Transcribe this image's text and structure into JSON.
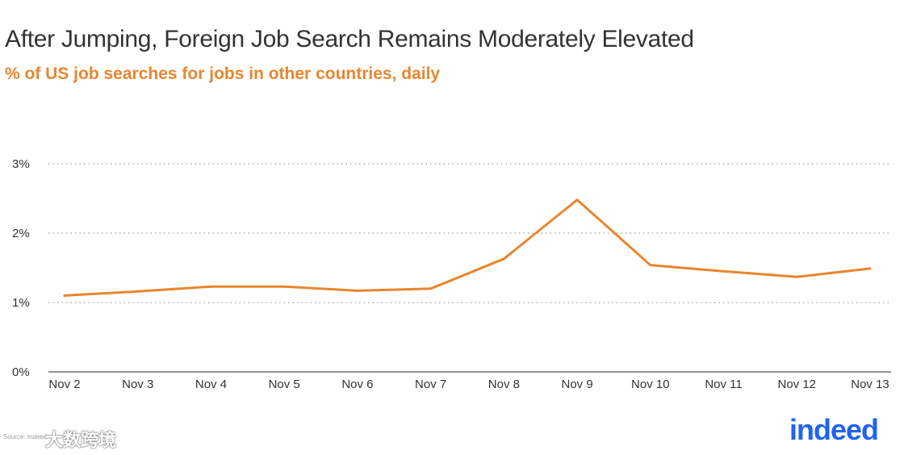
{
  "chart_data": {
    "type": "line",
    "title": "After Jumping, Foreign Job Search Remains Moderately Elevated",
    "subtitle": "% of US job searches for jobs in other countries, daily",
    "categories": [
      "Nov 2",
      "Nov 3",
      "Nov 4",
      "Nov 5",
      "Nov 6",
      "Nov 7",
      "Nov 8",
      "Nov 9",
      "Nov 10",
      "Nov 11",
      "Nov 12",
      "Nov 13"
    ],
    "series": [
      {
        "values": [
          1.1,
          1.16,
          1.23,
          1.23,
          1.17,
          1.2,
          1.63,
          2.48,
          1.54,
          1.45,
          1.37,
          1.49
        ]
      }
    ],
    "y_ticks": [
      0,
      1,
      2,
      3
    ],
    "y_tick_labels": [
      "0%",
      "1%",
      "2%",
      "3%"
    ],
    "ylim": [
      0,
      3
    ],
    "grid": true,
    "line_color": "#e8862e",
    "title_color": "#333333",
    "subtitle_color": "#e8862e"
  },
  "footer": {
    "source": "Source: Indeed",
    "watermark": "大数跨境",
    "logo": "indeed",
    "logo_color": "#2164f3"
  }
}
